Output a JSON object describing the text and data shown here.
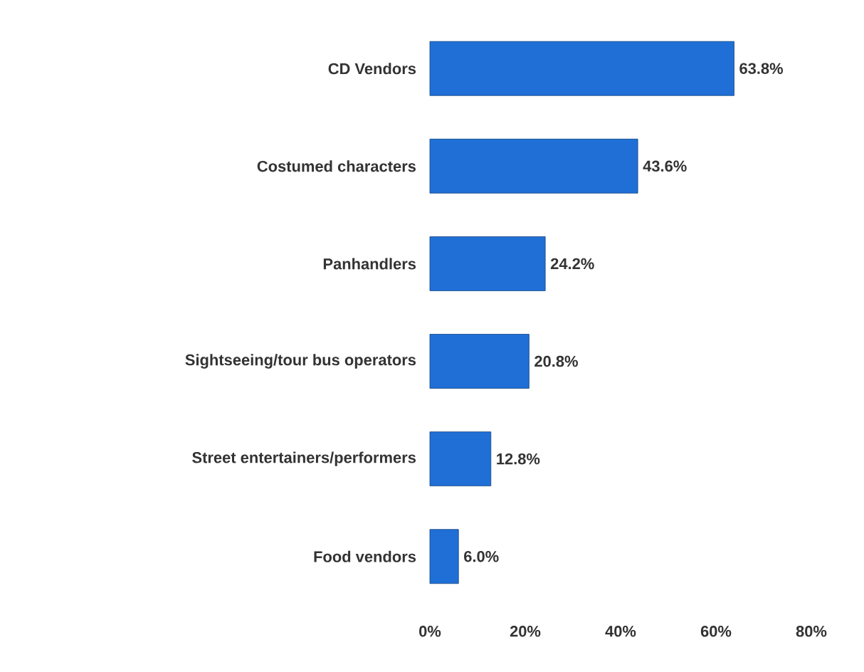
{
  "chart_data": {
    "type": "bar",
    "orientation": "horizontal",
    "categories": [
      "CD Vendors",
      "Costumed characters",
      "Panhandlers",
      "Sightseeing/tour bus operators",
      "Street entertainers/performers",
      "Food vendors"
    ],
    "values": [
      63.8,
      43.6,
      24.2,
      20.8,
      12.8,
      6.0
    ],
    "value_labels": [
      "63.8%",
      "43.6%",
      "24.2%",
      "20.8%",
      "12.8%",
      "6.0%"
    ],
    "color": "#1f6fd6",
    "xlim": [
      0,
      80
    ],
    "xticks": [
      {
        "value": 0,
        "label": "0%"
      },
      {
        "value": 20,
        "label": "20%"
      },
      {
        "value": 40,
        "label": "40%"
      },
      {
        "value": 60,
        "label": "60%"
      },
      {
        "value": 80,
        "label": "80%"
      }
    ],
    "data_labels": false
  }
}
